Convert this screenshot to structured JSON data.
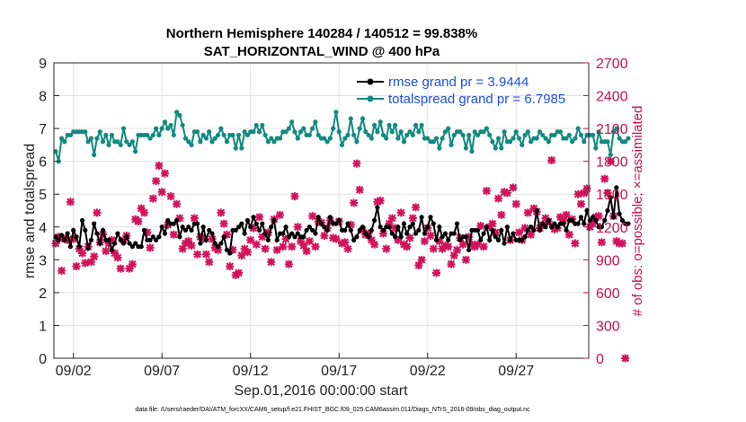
{
  "chart_data": {
    "type": "line",
    "title_line1": "Northern Hemisphere 140284 / 140512 = 99.838%",
    "title_line2": "SAT_HORIZONTAL_WIND @ 400 hPa",
    "ylabel_left": "rmse and totalspread",
    "ylabel_right": "# of obs: o=possible; ×=assimilated",
    "xlabel": "Sep.01,2016 00:00:00 start",
    "footnote": "data file: /Users/raeder/DAI/ATM_forcXX/CAM6_setup/f.e21.FHIST_BGC.f09_025.CAM6assim.011/Diags_NTrS_2016-09/obs_diag_output.nc",
    "x_tick_labels": [
      "09/02",
      "09/07",
      "09/12",
      "09/17",
      "09/22",
      "09/27"
    ],
    "x_tick_days": [
      2,
      7,
      12,
      17,
      22,
      27
    ],
    "xlim": [
      0.9,
      31.1
    ],
    "ylim_left": [
      0,
      9
    ],
    "y_ticks_left": [
      "0",
      "1",
      "2",
      "3",
      "4",
      "5",
      "6",
      "7",
      "8",
      "9"
    ],
    "ylim_right": [
      0,
      2700
    ],
    "y_ticks_right": [
      "0",
      "300",
      "600",
      "900",
      "1200",
      "1500",
      "1800",
      "2100",
      "2400",
      "2700"
    ],
    "grid": true,
    "legend_location": "top-right",
    "colors": {
      "rmse": "#000000",
      "spread": "#118a80",
      "obs": "#d2125a"
    },
    "series": [
      {
        "name": "rmse grand pr = 3.9444",
        "axis": "left",
        "values": [
          3.7,
          3.6,
          3.75,
          3.6,
          3.8,
          3.4,
          3.9,
          3.7,
          3.4,
          4.2,
          3.9,
          3.35,
          3.6,
          4.1,
          3.8,
          3.5,
          3.9,
          3.6,
          3.6,
          3.3,
          3.5,
          3.8,
          3.6,
          3.5,
          3.7,
          3.5,
          3.4,
          3.5,
          3.4,
          3.4,
          3.9,
          3.6,
          3.6,
          3.7,
          3.6,
          3.7,
          4.0,
          3.8,
          4.2,
          4.1,
          4.1,
          4.2,
          3.7,
          4.0,
          3.9,
          4.0,
          3.9,
          4.1,
          4.1,
          3.5,
          4.0,
          3.6,
          3.9,
          3.8,
          3.5,
          3.4,
          3.5,
          3.7,
          3.3,
          3.2,
          3.9,
          3.9,
          4.0,
          4.1,
          3.8,
          4.2,
          4.0,
          4.3,
          4.1,
          3.9,
          4.1,
          3.8,
          3.6,
          4.0,
          4.2,
          3.6,
          3.8,
          3.8,
          4.0,
          3.7,
          3.8,
          3.7,
          3.8,
          3.7,
          3.7,
          3.9,
          4.0,
          3.9,
          3.8,
          4.3,
          4.1,
          4.0,
          3.9,
          4.3,
          4.1,
          4.1,
          4.2,
          3.9,
          3.9,
          4.1,
          3.9,
          3.6,
          3.7,
          3.9,
          4.0,
          3.8,
          3.7,
          3.9,
          4.2,
          4.6,
          4.0,
          3.9,
          4.0,
          4.0,
          3.8,
          3.7,
          4.0,
          3.7,
          4.1,
          3.8,
          4.0,
          4.1,
          3.8,
          3.9,
          4.3,
          3.8,
          4.0,
          4.3,
          4.1,
          3.6,
          4.0,
          3.7,
          3.8,
          3.6,
          3.8,
          3.8,
          4.1,
          3.6,
          3.7,
          3.7,
          3.3,
          3.9,
          3.9,
          3.9,
          3.6,
          3.8,
          4.0,
          3.6,
          3.9,
          3.7,
          3.6,
          3.9,
          3.5,
          4.0,
          3.6,
          3.8,
          3.6,
          3.6,
          3.6,
          3.7,
          3.9,
          4.0,
          3.9,
          4.5,
          3.9,
          4.1,
          4.0,
          4.2,
          4.0,
          4.1,
          4.0,
          4.1,
          4.1,
          3.9,
          4.2,
          4.2,
          4.1,
          4.1,
          4.3,
          4.1,
          4.5,
          4.2,
          4.3,
          4.2,
          4.0,
          4.0,
          4.2,
          4.5,
          4.9,
          4.3,
          5.2,
          4.4,
          4.2,
          4.1,
          4.1
        ]
      },
      {
        "name": "totalspread grand pr = 6.7985",
        "axis": "left",
        "values": [
          6.3,
          6.0,
          6.7,
          6.6,
          6.8,
          6.8,
          6.9,
          6.9,
          6.9,
          6.9,
          6.9,
          6.6,
          6.7,
          6.2,
          6.7,
          6.9,
          6.6,
          6.8,
          6.5,
          6.8,
          6.6,
          6.6,
          6.5,
          7.0,
          6.6,
          6.5,
          6.6,
          6.3,
          6.8,
          6.8,
          6.8,
          6.8,
          6.7,
          6.8,
          7.0,
          6.8,
          7.0,
          7.2,
          7.0,
          7.1,
          6.8,
          7.5,
          7.4,
          7.1,
          6.7,
          6.6,
          6.5,
          6.9,
          6.9,
          6.6,
          6.8,
          6.7,
          6.9,
          6.6,
          6.7,
          6.8,
          7.0,
          6.8,
          6.6,
          6.8,
          6.8,
          6.4,
          6.8,
          6.4,
          6.9,
          6.8,
          6.9,
          6.9,
          7.1,
          6.9,
          7.1,
          6.8,
          6.6,
          6.7,
          6.6,
          6.7,
          6.7,
          6.9,
          6.9,
          7.0,
          7.2,
          6.9,
          6.7,
          6.9,
          7.0,
          6.8,
          6.8,
          7.0,
          7.2,
          6.8,
          6.7,
          6.7,
          6.6,
          6.7,
          7.0,
          7.5,
          6.9,
          6.5,
          6.7,
          6.8,
          7.3,
          6.8,
          6.6,
          7.0,
          7.3,
          6.9,
          6.8,
          6.7,
          7.1,
          6.9,
          7.2,
          6.8,
          6.7,
          7.1,
          6.9,
          7.1,
          6.7,
          6.9,
          6.6,
          6.8,
          6.9,
          6.8,
          7.1,
          6.9,
          7.1,
          6.7,
          6.7,
          6.6,
          6.6,
          6.7,
          6.4,
          6.7,
          6.9,
          7.0,
          6.5,
          6.8,
          6.9,
          6.9,
          6.8,
          6.4,
          6.8,
          6.3,
          6.9,
          6.8,
          6.9,
          6.9,
          7.0,
          6.8,
          6.6,
          6.4,
          6.7,
          6.4,
          6.9,
          6.6,
          6.6,
          6.7,
          6.9,
          6.7,
          6.5,
          6.8,
          6.9,
          6.6,
          6.7,
          6.7,
          6.9,
          6.8,
          6.7,
          6.6,
          6.8,
          6.8,
          6.9,
          6.9,
          6.7,
          6.7,
          6.8,
          6.6,
          6.7,
          7.0,
          6.8,
          6.6,
          6.8,
          6.8,
          6.8,
          6.4,
          6.9,
          6.6,
          6.6,
          6.6,
          6.2,
          6.9,
          7.0,
          6.7,
          6.6,
          6.6,
          6.7
        ]
      },
      {
        "name": "# of obs assimilated",
        "axis": "right",
        "values": [
          1050,
          1110,
          800,
          1090,
          1080,
          1430,
          1090,
          840,
          1000,
          960,
          870,
          1020,
          880,
          930,
          1330,
          1060,
          1130,
          980,
          1050,
          1080,
          960,
          920,
          820,
          1080,
          1120,
          820,
          860,
          1270,
          1250,
          1370,
          1330,
          1150,
          1010,
          1460,
          1620,
          1760,
          1520,
          1690,
          1220,
          1480,
          1130,
          1410,
          1280,
          1000,
          1050,
          1070,
          1030,
          1280,
          950,
          1110,
          1090,
          950,
          880,
          1090,
          1010,
          990,
          1330,
          1230,
          1130,
          840,
          990,
          760,
          780,
          940,
          1000,
          970,
          1080,
          1190,
          1040,
          1290,
          1110,
          1000,
          1150,
          880,
          1270,
          990,
          1310,
          1020,
          1090,
          860,
          1020,
          1480,
          1200,
          1070,
          1030,
          980,
          1070,
          1300,
          1020,
          1250,
          1240,
          1120,
          1190,
          1260,
          1100,
          1090,
          1250,
          1050,
          1060,
          1000,
          1220,
          1420,
          1780,
          1540,
          1170,
          1130,
          1140,
          1080,
          1040,
          1430,
          1440,
          1140,
          1000,
          1230,
          1280,
          1190,
          1080,
          1330,
          1040,
          1020,
          1100,
          1280,
          1380,
          850,
          900,
          1070,
          1190,
          1120,
          1000,
          780,
          1070,
          1000,
          1030,
          1020,
          860,
          940,
          990,
          1100,
          1040,
          900,
          1110,
          1040,
          1020,
          1040,
          1210,
          1020,
          1530,
          1200,
          1230,
          1150,
          1460,
          1310,
          1520,
          1510,
          1080,
          1560,
          1410,
          1150,
          1080,
          1190,
          1330,
          1130,
          1370,
          1340,
          1190,
          1220,
          1280,
          1250,
          1810,
          1180,
          1190,
          1290,
          1260,
          1310,
          1130,
          1270,
          1050,
          1500,
          1410,
          1510,
          1550,
          1200,
          1230,
          1290,
          1300,
          1060,
          1640,
          1510,
          1800,
          1300,
          1070,
          1050,
          1050,
          0
        ]
      }
    ]
  }
}
